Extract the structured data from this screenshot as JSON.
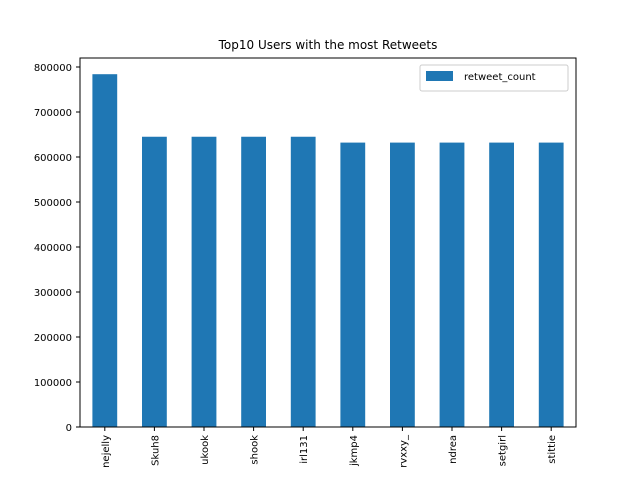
{
  "chart_data": {
    "type": "bar",
    "title": "Top10 Users with the most Retweets",
    "xlabel": "",
    "ylabel": "",
    "categories": [
      "nejelly",
      "Skuh8",
      "ukook",
      "shook",
      "irl131",
      "jkmp4",
      "rvxxy_",
      "ndrea",
      "setgirl",
      "stittie"
    ],
    "series": [
      {
        "name": "retweet_count",
        "values": [
          784000,
          645000,
          645000,
          645000,
          645000,
          632000,
          632000,
          632000,
          632000,
          632000
        ],
        "color": "#1f77b4"
      }
    ],
    "ylim": [
      0,
      820000
    ],
    "yticks": [
      0,
      100000,
      200000,
      300000,
      400000,
      500000,
      600000,
      700000,
      800000
    ],
    "ytick_labels": [
      "0",
      "100000",
      "200000",
      "300000",
      "400000",
      "500000",
      "600000",
      "700000",
      "800000"
    ],
    "legend": {
      "position": "top-right"
    },
    "grid": false
  }
}
